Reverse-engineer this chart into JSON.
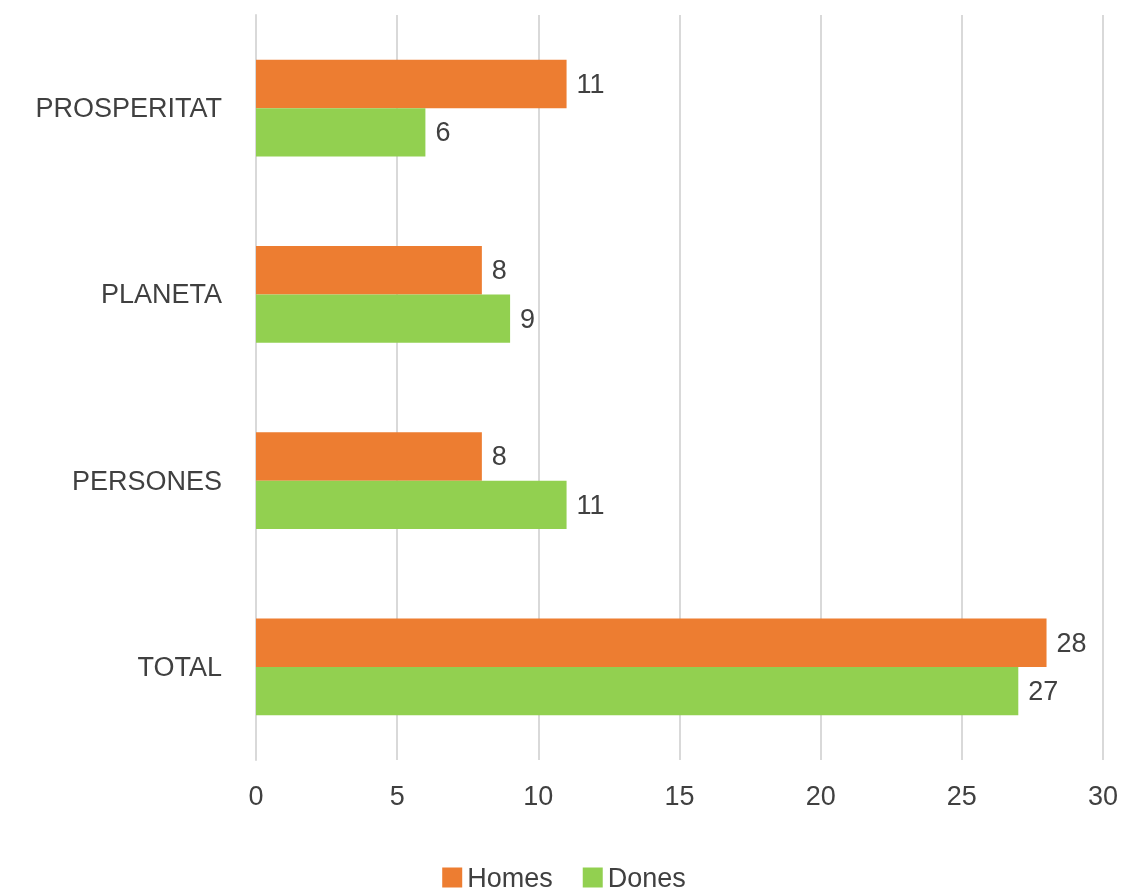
{
  "chart_data": {
    "type": "bar",
    "orientation": "horizontal",
    "categories": [
      "PROSPERITAT",
      "PLANETA",
      "PERSONES",
      "TOTAL"
    ],
    "series": [
      {
        "name": "Homes",
        "color": "#ed7d31",
        "values": [
          11,
          8,
          8,
          28
        ]
      },
      {
        "name": "Dones",
        "color": "#92d050",
        "values": [
          6,
          9,
          11,
          27
        ]
      }
    ],
    "xlim": [
      0,
      30
    ],
    "xticks": [
      0,
      5,
      10,
      15,
      20,
      25,
      30
    ],
    "grid": "x",
    "legend": "bottom",
    "data_labels": true
  }
}
